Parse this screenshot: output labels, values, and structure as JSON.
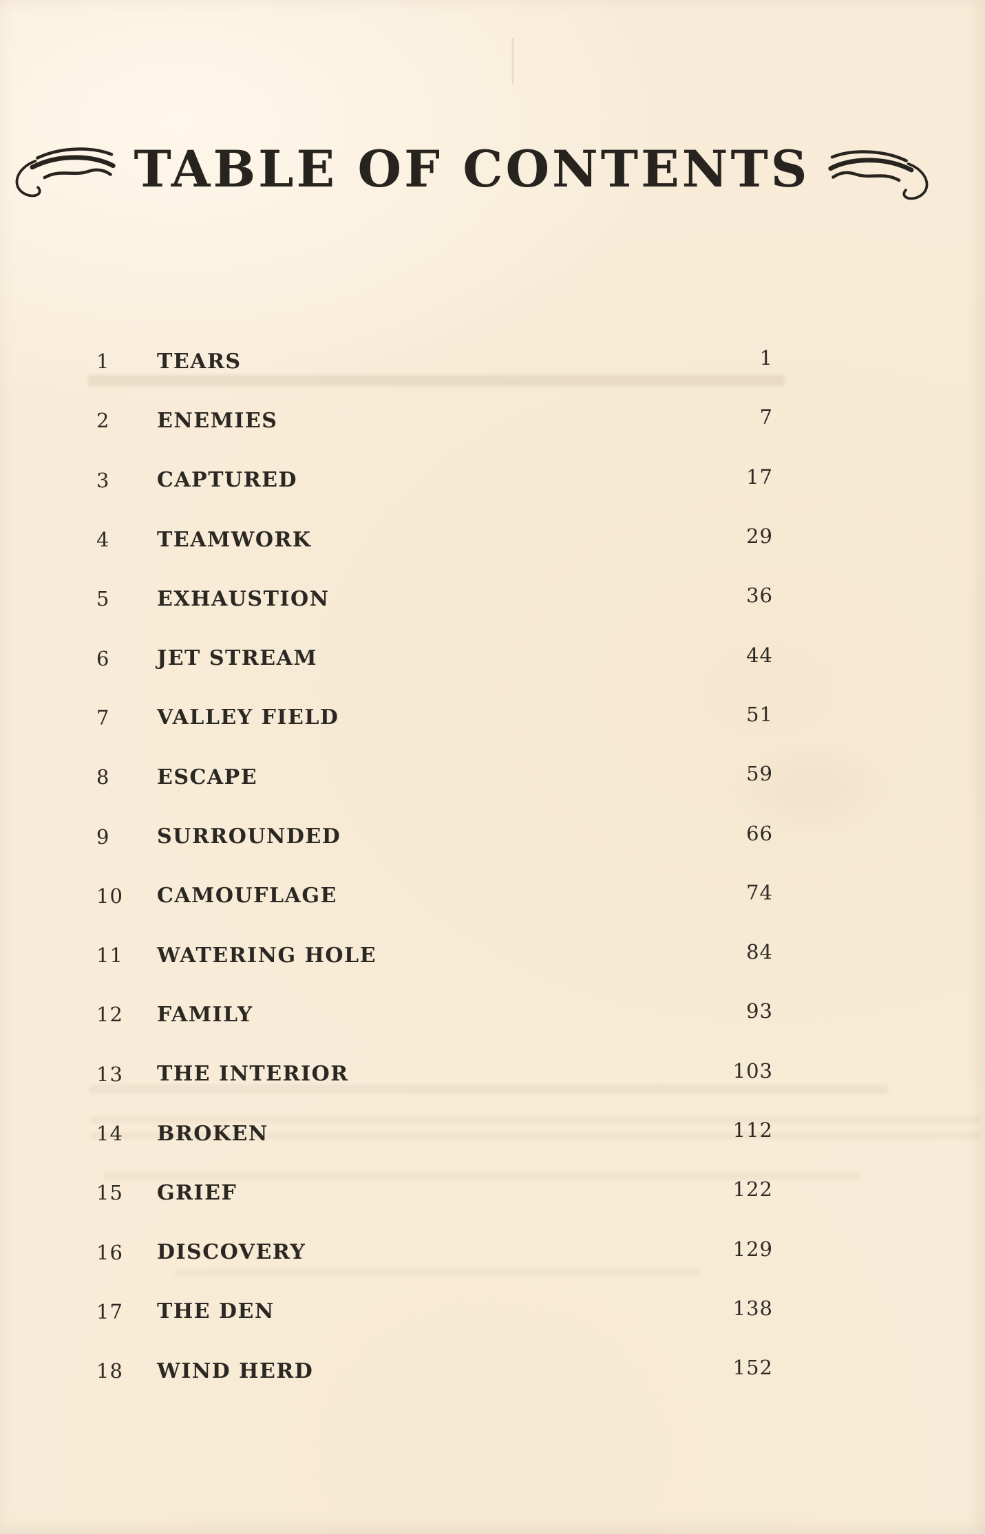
{
  "page": {
    "title": "TABLE OF CONTENTS"
  },
  "colors": {
    "paper_background": "#f8ecd8",
    "ink": "#2b2722"
  },
  "toc": {
    "entries": [
      {
        "num": "1",
        "title": "TEARS",
        "page": "1"
      },
      {
        "num": "2",
        "title": "ENEMIES",
        "page": "7"
      },
      {
        "num": "3",
        "title": "CAPTURED",
        "page": "17"
      },
      {
        "num": "4",
        "title": "TEAMWORK",
        "page": "29"
      },
      {
        "num": "5",
        "title": "EXHAUSTION",
        "page": "36"
      },
      {
        "num": "6",
        "title": "JET STREAM",
        "page": "44"
      },
      {
        "num": "7",
        "title": "VALLEY FIELD",
        "page": "51"
      },
      {
        "num": "8",
        "title": "ESCAPE",
        "page": "59"
      },
      {
        "num": "9",
        "title": "SURROUNDED",
        "page": "66"
      },
      {
        "num": "10",
        "title": "CAMOUFLAGE",
        "page": "74"
      },
      {
        "num": "11",
        "title": "WATERING HOLE",
        "page": "84"
      },
      {
        "num": "12",
        "title": "FAMILY",
        "page": "93"
      },
      {
        "num": "13",
        "title": "THE INTERIOR",
        "page": "103"
      },
      {
        "num": "14",
        "title": "BROKEN",
        "page": "112"
      },
      {
        "num": "15",
        "title": "GRIEF",
        "page": "122"
      },
      {
        "num": "16",
        "title": "DISCOVERY",
        "page": "129"
      },
      {
        "num": "17",
        "title": "THE DEN",
        "page": "138"
      },
      {
        "num": "18",
        "title": "WIND HERD",
        "page": "152"
      }
    ]
  }
}
